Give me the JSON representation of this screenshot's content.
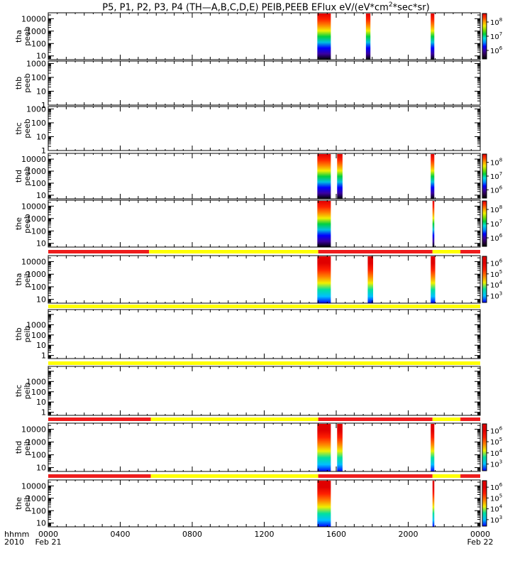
{
  "title_main": "P5, P1, P2, P3, P4 (TH—A,B,C,D,E) PEIB,PEEB EFlux eV/(eV*cm",
  "title_sup": "2",
  "title_end": "*sec*sr)",
  "colors": {
    "flag_red": "#ee1c1c",
    "flag_yellow": "#ffff00",
    "cmap": [
      "#000000",
      "#2a0048",
      "#3a00a0",
      "#0000ff",
      "#0090ff",
      "#00e0e0",
      "#00d040",
      "#7ce000",
      "#f0f000",
      "#ffa000",
      "#ff3c00",
      "#e00000"
    ]
  },
  "x_axis": {
    "corner_labels": [
      "hhmm",
      "2010"
    ],
    "ticks": [
      {
        "t": 0,
        "label": "0000",
        "date": "Feb 21"
      },
      {
        "t": 4,
        "label": "0400",
        "date": ""
      },
      {
        "t": 8,
        "label": "0800",
        "date": ""
      },
      {
        "t": 12,
        "label": "1200",
        "date": ""
      },
      {
        "t": 16,
        "label": "1600",
        "date": ""
      },
      {
        "t": 20,
        "label": "2000",
        "date": ""
      },
      {
        "t": 24,
        "label": "0000",
        "date": "Feb 22"
      }
    ]
  },
  "chart_data": [
    {
      "type": "heatmap",
      "probe": "tha",
      "instrument": "peeb",
      "ylabel": [
        "tha",
        "peeb"
      ],
      "ylim": [
        5,
        30000
      ],
      "yscale": "log",
      "yticks": [
        {
          "v": 10,
          "l": "10"
        },
        {
          "v": 100,
          "l": "100"
        },
        {
          "v": 1000,
          "l": "1000"
        },
        {
          "v": 10000,
          "l": "10000"
        }
      ],
      "colorbar": {
        "ticks": [
          {
            "b": "10",
            "e": "6"
          },
          {
            "b": "10",
            "e": "7"
          },
          {
            "b": "10",
            "e": "8"
          }
        ]
      },
      "flag": null,
      "intervals": [
        [
          14.95,
          15.7
        ],
        [
          17.65,
          17.9
        ],
        [
          21.25,
          21.45
        ]
      ]
    },
    {
      "type": "heatmap",
      "probe": "thb",
      "instrument": "peeb",
      "ylabel": [
        "thb",
        "peeb"
      ],
      "ylim": [
        1,
        1500
      ],
      "yscale": "log",
      "yticks": [
        {
          "v": 1,
          "l": "1"
        },
        {
          "v": 10,
          "l": "10"
        },
        {
          "v": 100,
          "l": "100"
        },
        {
          "v": 1000,
          "l": "1000"
        }
      ],
      "colorbar": null,
      "flag": null,
      "intervals": []
    },
    {
      "type": "heatmap",
      "probe": "thc",
      "instrument": "peeb",
      "ylabel": [
        "thc",
        "peeb"
      ],
      "ylim": [
        1,
        1500
      ],
      "yscale": "log",
      "yticks": [
        {
          "v": 1,
          "l": "1"
        },
        {
          "v": 10,
          "l": "10"
        },
        {
          "v": 100,
          "l": "100"
        },
        {
          "v": 1000,
          "l": "1000"
        }
      ],
      "colorbar": null,
      "flag": null,
      "intervals": []
    },
    {
      "type": "heatmap",
      "probe": "thd",
      "instrument": "peeb",
      "ylabel": [
        "thd",
        "peeb"
      ],
      "ylim": [
        5,
        30000
      ],
      "yscale": "log",
      "yticks": [
        {
          "v": 10,
          "l": "10"
        },
        {
          "v": 100,
          "l": "100"
        },
        {
          "v": 1000,
          "l": "1000"
        },
        {
          "v": 10000,
          "l": "10000"
        }
      ],
      "colorbar": {
        "ticks": [
          {
            "b": "10",
            "e": "6"
          },
          {
            "b": "10",
            "e": "7"
          },
          {
            "b": "10",
            "e": "8"
          }
        ]
      },
      "flag": null,
      "intervals": [
        [
          14.95,
          15.7
        ],
        [
          16.05,
          16.35
        ],
        [
          21.25,
          21.45
        ]
      ]
    },
    {
      "type": "heatmap",
      "probe": "the",
      "instrument": "peeb",
      "ylabel": [
        "the",
        "peeb"
      ],
      "ylim": [
        5,
        30000
      ],
      "yscale": "log",
      "yticks": [
        {
          "v": 10,
          "l": "10"
        },
        {
          "v": 100,
          "l": "100"
        },
        {
          "v": 1000,
          "l": "1000"
        },
        {
          "v": 10000,
          "l": "10000"
        }
      ],
      "colorbar": {
        "ticks": [
          {
            "b": "10",
            "e": "6"
          },
          {
            "b": "10",
            "e": "7"
          },
          {
            "b": "10",
            "e": "8"
          }
        ]
      },
      "flag": null,
      "intervals": [
        [
          14.95,
          15.7
        ],
        [
          21.35,
          21.45
        ]
      ]
    },
    {
      "type": "heatmap",
      "probe": "tha",
      "instrument": "peib",
      "ylabel": [
        "tha",
        "peib"
      ],
      "ylim": [
        5,
        30000
      ],
      "yscale": "log",
      "yticks": [
        {
          "v": 10,
          "l": "10"
        },
        {
          "v": 100,
          "l": "100"
        },
        {
          "v": 1000,
          "l": "1000"
        },
        {
          "v": 10000,
          "l": "10000"
        }
      ],
      "colorbar": {
        "ticks": [
          {
            "b": "10",
            "e": "3"
          },
          {
            "b": "10",
            "e": "4"
          },
          {
            "b": "10",
            "e": "5"
          },
          {
            "b": "10",
            "e": "6"
          }
        ]
      },
      "flag": [
        {
          "from": 0,
          "to": 5.6,
          "state": "red"
        },
        {
          "from": 5.6,
          "to": 15.0,
          "state": "yellow"
        },
        {
          "from": 15.0,
          "to": 21.35,
          "state": "red"
        },
        {
          "from": 21.35,
          "to": 22.9,
          "state": "yellow"
        },
        {
          "from": 22.9,
          "to": 24,
          "state": "red"
        }
      ],
      "intervals": [
        [
          14.95,
          15.7
        ],
        [
          17.75,
          18.05
        ],
        [
          21.25,
          21.5
        ]
      ]
    },
    {
      "type": "heatmap",
      "probe": "thb",
      "instrument": "peib",
      "ylabel": [
        "thb",
        "peib"
      ],
      "ylim": [
        0.5,
        30000
      ],
      "yscale": "log",
      "yticks": [
        {
          "v": 1,
          "l": "1"
        },
        {
          "v": 10,
          "l": "10"
        },
        {
          "v": 100,
          "l": "100"
        },
        {
          "v": 1000,
          "l": "1000"
        }
      ],
      "colorbar": null,
      "flag": [
        {
          "from": 0,
          "to": 24,
          "state": "yellow"
        }
      ],
      "intervals": []
    },
    {
      "type": "heatmap",
      "probe": "thc",
      "instrument": "peib",
      "ylabel": [
        "thc",
        "peib"
      ],
      "ylim": [
        0.5,
        30000
      ],
      "yscale": "log",
      "yticks": [
        {
          "v": 1,
          "l": "1"
        },
        {
          "v": 10,
          "l": "10"
        },
        {
          "v": 100,
          "l": "100"
        },
        {
          "v": 1000,
          "l": "1000"
        }
      ],
      "colorbar": null,
      "flag": [
        {
          "from": 0,
          "to": 24,
          "state": "yellow"
        }
      ],
      "intervals": []
    },
    {
      "type": "heatmap",
      "probe": "thd",
      "instrument": "peib",
      "ylabel": [
        "thd",
        "peib"
      ],
      "ylim": [
        5,
        30000
      ],
      "yscale": "log",
      "yticks": [
        {
          "v": 10,
          "l": "10"
        },
        {
          "v": 100,
          "l": "100"
        },
        {
          "v": 1000,
          "l": "1000"
        },
        {
          "v": 10000,
          "l": "10000"
        }
      ],
      "colorbar": {
        "ticks": [
          {
            "b": "10",
            "e": "3"
          },
          {
            "b": "10",
            "e": "4"
          },
          {
            "b": "10",
            "e": "5"
          },
          {
            "b": "10",
            "e": "6"
          }
        ]
      },
      "flag": [
        {
          "from": 0,
          "to": 5.7,
          "state": "red"
        },
        {
          "from": 5.7,
          "to": 15.0,
          "state": "yellow"
        },
        {
          "from": 15.0,
          "to": 21.35,
          "state": "red"
        },
        {
          "from": 21.35,
          "to": 22.9,
          "state": "yellow"
        },
        {
          "from": 22.9,
          "to": 24,
          "state": "red"
        }
      ],
      "intervals": [
        [
          14.95,
          15.7
        ],
        [
          16.05,
          16.35
        ],
        [
          21.25,
          21.45
        ]
      ]
    },
    {
      "type": "heatmap",
      "probe": "the",
      "instrument": "peib",
      "ylabel": [
        "the",
        "peib"
      ],
      "ylim": [
        5,
        30000
      ],
      "yscale": "log",
      "yticks": [
        {
          "v": 10,
          "l": "10"
        },
        {
          "v": 100,
          "l": "100"
        },
        {
          "v": 1000,
          "l": "1000"
        },
        {
          "v": 10000,
          "l": "10000"
        }
      ],
      "colorbar": {
        "ticks": [
          {
            "b": "10",
            "e": "3"
          },
          {
            "b": "10",
            "e": "4"
          },
          {
            "b": "10",
            "e": "5"
          },
          {
            "b": "10",
            "e": "6"
          }
        ]
      },
      "flag": [
        {
          "from": 0,
          "to": 5.7,
          "state": "red"
        },
        {
          "from": 5.7,
          "to": 15.0,
          "state": "yellow"
        },
        {
          "from": 15.0,
          "to": 21.35,
          "state": "red"
        },
        {
          "from": 21.35,
          "to": 22.9,
          "state": "yellow"
        },
        {
          "from": 22.9,
          "to": 24,
          "state": "red"
        }
      ],
      "intervals": [
        [
          14.95,
          15.7
        ],
        [
          21.35,
          21.45
        ]
      ]
    }
  ]
}
